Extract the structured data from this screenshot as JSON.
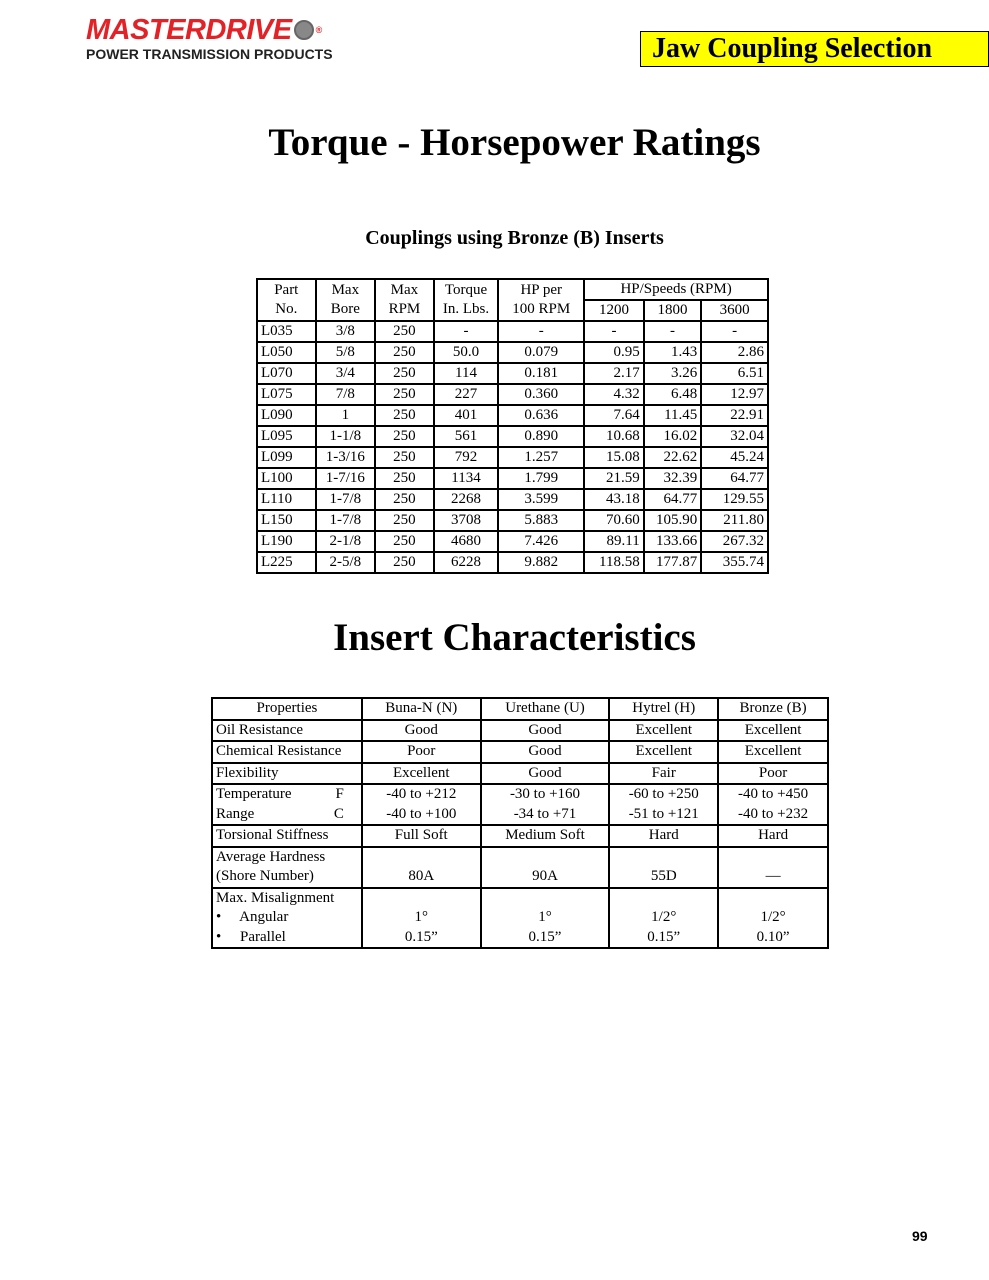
{
  "logo": {
    "brand": "MASTERDRIVE",
    "tagline": "POWER TRANSMISSION PRODUCTS"
  },
  "header_badge": "Jaw Coupling Selection",
  "title": "Torque - Horsepower Ratings",
  "subtitle": "Couplings using Bronze (B) Inserts",
  "ratings": {
    "headers": {
      "part": [
        "Part",
        "No."
      ],
      "bore": [
        "Max",
        "Bore"
      ],
      "rpm": [
        "Max",
        "RPM"
      ],
      "torque": [
        "Torque",
        "In. Lbs."
      ],
      "hp100": [
        "HP per",
        "100 RPM"
      ],
      "speeds": "HP/Speeds (RPM)",
      "s1": "1200",
      "s2": "1800",
      "s3": "3600"
    },
    "rows": [
      [
        "L035",
        "3/8",
        "250",
        "-",
        "-",
        "-",
        "-",
        "-"
      ],
      [
        "L050",
        "5/8",
        "250",
        "50.0",
        "0.079",
        "0.95",
        "1.43",
        "2.86"
      ],
      [
        "L070",
        "3/4",
        "250",
        "114",
        "0.181",
        "2.17",
        "3.26",
        "6.51"
      ],
      [
        "L075",
        "7/8",
        "250",
        "227",
        "0.360",
        "4.32",
        "6.48",
        "12.97"
      ],
      [
        "L090",
        "1",
        "250",
        "401",
        "0.636",
        "7.64",
        "11.45",
        "22.91"
      ],
      [
        "L095",
        "1-1/8",
        "250",
        "561",
        "0.890",
        "10.68",
        "16.02",
        "32.04"
      ],
      [
        "L099",
        "1-3/16",
        "250",
        "792",
        "1.257",
        "15.08",
        "22.62",
        "45.24"
      ],
      [
        "L100",
        "1-7/16",
        "250",
        "1134",
        "1.799",
        "21.59",
        "32.39",
        "64.77"
      ],
      [
        "L110",
        "1-7/8",
        "250",
        "2268",
        "3.599",
        "43.18",
        "64.77",
        "129.55"
      ],
      [
        "L150",
        "1-7/8",
        "250",
        "3708",
        "5.883",
        "70.60",
        "105.90",
        "211.80"
      ],
      [
        "L190",
        "2-1/8",
        "250",
        "4680",
        "7.426",
        "89.11",
        "133.66",
        "267.32"
      ],
      [
        "L225",
        "2-5/8",
        "250",
        "6228",
        "9.882",
        "118.58",
        "177.87",
        "355.74"
      ]
    ]
  },
  "title2": "Insert Characteristics",
  "inserts": {
    "headers": [
      "Properties",
      "Buna-N (N)",
      "Urethane (U)",
      "Hytrel (H)",
      "Bronze (B)"
    ],
    "oil": [
      "Oil Resistance",
      "Good",
      "Good",
      "Excellent",
      "Excellent"
    ],
    "chem": [
      "Chemical Resistance",
      "Poor",
      "Good",
      "Excellent",
      "Excellent"
    ],
    "flex": [
      "Flexibility",
      "Excellent",
      "Good",
      "Fair",
      "Poor"
    ],
    "temp": {
      "label1": "Temperature",
      "unit1": "F",
      "label2": "Range",
      "unit2": "C",
      "f": [
        "-40 to +212",
        "-30 to +160",
        "-60 to +250",
        "-40 to +450"
      ],
      "c": [
        "-40 to +100",
        "-34 to +71",
        "-51 to +121",
        "-40 to +232"
      ]
    },
    "tors": [
      "Torsional Stiffness",
      "Full Soft",
      "Medium Soft",
      "Hard",
      "Hard"
    ],
    "hard": {
      "label1": "Average Hardness",
      "label2": "(Shore Number)",
      "values": [
        "80A",
        "90A",
        "55D",
        "—"
      ]
    },
    "mis": {
      "label": "Max. Misalignment",
      "angular": "•     Angular",
      "parallel": "•     Parallel",
      "ang": [
        "1°",
        "1°",
        "1/2°",
        "1/2°"
      ],
      "par": [
        "0.15”",
        "0.15”",
        "0.15”",
        "0.10”"
      ]
    }
  },
  "page_number": "99"
}
